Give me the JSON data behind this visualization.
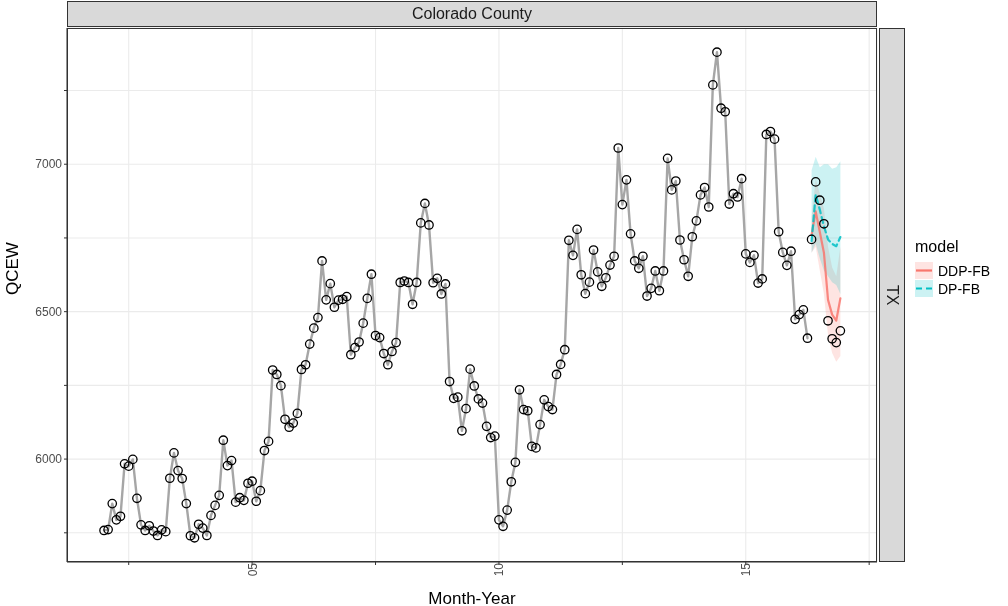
{
  "chart_data": {
    "type": "line",
    "title": "Colorado County",
    "xlabel": "Month-Year",
    "ylabel": "QCEW",
    "legend_title": "model",
    "annotations": [
      "TX"
    ],
    "xlim": [
      "2001-04-01",
      "2017-08-29"
    ],
    "xticks": [
      {
        "value": "2002-07",
        "label": null
      },
      {
        "value": "2005-01",
        "label": "05"
      },
      {
        "value": "2007-07",
        "label": null
      },
      {
        "value": "2010-01",
        "label": "10"
      },
      {
        "value": "2012-07",
        "label": null
      },
      {
        "value": "2015-01",
        "label": "15"
      },
      {
        "value": "2017-07",
        "label": null
      }
    ],
    "ylim": [
      5651,
      7462
    ],
    "yticks": [
      {
        "value": 5750,
        "label": null
      },
      6000,
      {
        "value": 6250,
        "label": null
      },
      6500,
      {
        "value": 6750,
        "label": null
      },
      7000,
      {
        "value": 7250,
        "label": null
      }
    ],
    "grid": true,
    "legend": "right",
    "series": [
      {
        "color": "#a6a6a6",
        "marker": "circle",
        "line_style": "solid",
        "x": [
          "2002-01",
          "2002-02",
          "2002-03",
          "2002-04",
          "2002-05",
          "2002-06",
          "2002-07",
          "2002-08",
          "2002-09",
          "2002-10",
          "2002-11",
          "2002-12",
          "2003-01",
          "2003-02",
          "2003-03",
          "2003-04",
          "2003-05",
          "2003-06",
          "2003-07",
          "2003-08",
          "2003-09",
          "2003-10",
          "2003-11",
          "2003-12",
          "2004-01",
          "2004-02",
          "2004-03",
          "2004-04",
          "2004-05",
          "2004-06",
          "2004-07",
          "2004-08",
          "2004-09",
          "2004-10",
          "2004-11",
          "2004-12",
          "2005-01",
          "2005-02",
          "2005-03",
          "2005-04",
          "2005-05",
          "2005-06",
          "2005-07",
          "2005-08",
          "2005-09",
          "2005-10",
          "2005-11",
          "2005-12",
          "2006-01",
          "2006-02",
          "2006-03",
          "2006-04",
          "2006-05",
          "2006-06",
          "2006-07",
          "2006-08",
          "2006-09",
          "2006-10",
          "2006-11",
          "2006-12",
          "2007-01",
          "2007-02",
          "2007-03",
          "2007-04",
          "2007-05",
          "2007-06",
          "2007-07",
          "2007-08",
          "2007-09",
          "2007-10",
          "2007-11",
          "2007-12",
          "2008-01",
          "2008-02",
          "2008-03",
          "2008-04",
          "2008-05",
          "2008-06",
          "2008-07",
          "2008-08",
          "2008-09",
          "2008-10",
          "2008-11",
          "2008-12",
          "2009-01",
          "2009-02",
          "2009-03",
          "2009-04",
          "2009-05",
          "2009-06",
          "2009-07",
          "2009-08",
          "2009-09",
          "2009-10",
          "2009-11",
          "2009-12",
          "2010-01",
          "2010-02",
          "2010-03",
          "2010-04",
          "2010-05",
          "2010-06",
          "2010-07",
          "2010-08",
          "2010-09",
          "2010-10",
          "2010-11",
          "2010-12",
          "2011-01",
          "2011-02",
          "2011-03",
          "2011-04",
          "2011-05",
          "2011-06",
          "2011-07",
          "2011-08",
          "2011-09",
          "2011-10",
          "2011-11",
          "2011-12",
          "2012-01",
          "2012-02",
          "2012-03",
          "2012-04",
          "2012-05",
          "2012-06",
          "2012-07",
          "2012-08",
          "2012-09",
          "2012-10",
          "2012-11",
          "2012-12",
          "2013-01",
          "2013-02",
          "2013-03",
          "2013-04",
          "2013-05",
          "2013-06",
          "2013-07",
          "2013-08",
          "2013-09",
          "2013-10",
          "2013-11",
          "2013-12",
          "2014-01",
          "2014-02",
          "2014-03",
          "2014-04",
          "2014-05",
          "2014-06",
          "2014-07",
          "2014-08",
          "2014-09",
          "2014-10",
          "2014-11",
          "2014-12",
          "2015-01",
          "2015-02",
          "2015-03",
          "2015-04",
          "2015-05",
          "2015-06",
          "2015-07",
          "2015-08",
          "2015-09",
          "2015-10",
          "2015-11",
          "2015-12",
          "2016-01",
          "2016-02",
          "2016-03",
          "2016-04"
        ],
        "values": [
          5758,
          5761,
          5849,
          5794,
          5806,
          5984,
          5976,
          5999,
          5867,
          5777,
          5758,
          5774,
          5756,
          5741,
          5760,
          5754,
          5935,
          6021,
          5961,
          5934,
          5849,
          5740,
          5733,
          5779,
          5766,
          5741,
          5809,
          5843,
          5877,
          6064,
          5978,
          5995,
          5854,
          5869,
          5860,
          5918,
          5925,
          5857,
          5893,
          6029,
          6060,
          6302,
          6287,
          6249,
          6135,
          6108,
          6122,
          6155,
          6304,
          6320,
          6390,
          6444,
          6480,
          6672,
          6540,
          6595,
          6515,
          6539,
          6542,
          6551,
          6354,
          6378,
          6397,
          6461,
          6545,
          6627,
          6419,
          6412,
          6358,
          6320,
          6365,
          6395,
          6599,
          6604,
          6599,
          6525,
          6599,
          6801,
          6867,
          6794,
          6598,
          6613,
          6560,
          6594,
          6263,
          6206,
          6210,
          6096,
          6171,
          6305,
          6248,
          6204,
          6190,
          6111,
          6073,
          6078,
          5794,
          5772,
          5827,
          5923,
          5989,
          6235,
          6168,
          6164,
          6043,
          6038,
          6117,
          6201,
          6178,
          6168,
          6287,
          6321,
          6371,
          6742,
          6691,
          6779,
          6625,
          6561,
          6600,
          6709,
          6635,
          6586,
          6615,
          6658,
          6688,
          7055,
          6863,
          6947,
          6764,
          6672,
          6647,
          6688,
          6553,
          6579,
          6638,
          6571,
          6638,
          7020,
          6913,
          6943,
          6743,
          6676,
          6620,
          6754,
          6808,
          6896,
          6921,
          6855,
          7269,
          7380,
          7190,
          7178,
          6865,
          6900,
          6889,
          6951,
          6696,
          6667,
          6691,
          6597,
          6611,
          7101,
          7111,
          7085,
          6771,
          6701,
          6657,
          6705,
          6474,
          6490,
          6506,
          6410
        ]
      },
      {
        "type": "scatter",
        "color": "#000000",
        "marker": "circle",
        "x": [
          "2016-05",
          "2016-06",
          "2016-07",
          "2016-08",
          "2016-09",
          "2016-10",
          "2016-11",
          "2016-12"
        ],
        "values": [
          6745,
          6940,
          6878,
          6798,
          6469,
          6408,
          6395,
          6435
        ]
      },
      {
        "name": "DDP-FB",
        "color": "#f8766d",
        "marker": "none",
        "line_style": "solid",
        "x": [
          "2016-05",
          "2016-06",
          "2016-07",
          "2016-08",
          "2016-09",
          "2016-10",
          "2016-11",
          "2016-12"
        ],
        "values": [
          6760,
          6840,
          6770,
          6700,
          6540,
          6490,
          6470,
          6545
        ],
        "lower": [
          6700,
          6720,
          6640,
          6560,
          6420,
          6360,
          6330,
          6350
        ],
        "upper": [
          6820,
          6950,
          6900,
          6850,
          6720,
          6650,
          6620,
          6720
        ]
      },
      {
        "name": "DP-FB",
        "color": "#00bfc4",
        "marker": "none",
        "line_style": "dashed",
        "x": [
          "2016-05",
          "2016-06",
          "2016-07",
          "2016-08",
          "2016-09",
          "2016-10",
          "2016-11",
          "2016-12"
        ],
        "values": [
          6739,
          6897,
          6846,
          6790,
          6745,
          6730,
          6722,
          6753
        ],
        "lower": [
          6700,
          6730,
          6680,
          6640,
          6620,
          6600,
          6590,
          6560
        ],
        "upper": [
          6980,
          7025,
          6990,
          7000,
          7000,
          6985,
          6990,
          7010
        ]
      }
    ]
  }
}
